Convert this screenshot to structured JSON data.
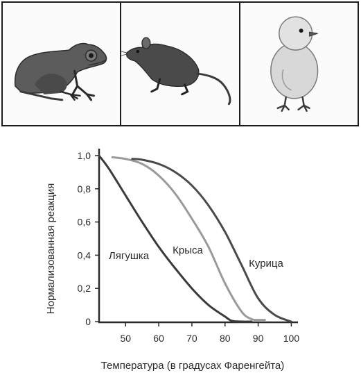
{
  "panels": [
    {
      "animal": "frog-illustration"
    },
    {
      "animal": "rat-illustration"
    },
    {
      "animal": "chick-illustration"
    }
  ],
  "chart_data": {
    "type": "line",
    "xlabel": "Температура (в градусах Фаренгейта)",
    "ylabel": "Нормализованная реакция",
    "xlim": [
      42,
      102
    ],
    "ylim": [
      0,
      1.0
    ],
    "xticks": [
      50,
      60,
      70,
      80,
      90,
      100
    ],
    "xtick_labels": [
      "50",
      "60",
      "70",
      "80",
      "90",
      "100"
    ],
    "yticks": [
      0,
      0.2,
      0.4,
      0.6,
      0.8,
      1.0
    ],
    "ytick_labels": [
      "0",
      "0,2",
      "0,4",
      "0,6",
      "0,8",
      "1,0"
    ],
    "grid": false,
    "series": [
      {
        "name": "Лягушка",
        "color": "#3a3a3a",
        "x": [
          42,
          45,
          50,
          55,
          60,
          65,
          70,
          75,
          80,
          82,
          85,
          88
        ],
        "y": [
          1.0,
          0.92,
          0.76,
          0.6,
          0.45,
          0.32,
          0.2,
          0.1,
          0.03,
          0.005,
          0.0,
          0.0
        ]
      },
      {
        "name": "Крыса",
        "color": "#9a9a9a",
        "x": [
          46,
          50,
          55,
          60,
          65,
          70,
          75,
          80,
          85,
          88,
          90,
          92
        ],
        "y": [
          0.99,
          0.98,
          0.95,
          0.88,
          0.77,
          0.62,
          0.45,
          0.23,
          0.06,
          0.015,
          0.01,
          0.01
        ]
      },
      {
        "name": "Курица",
        "color": "#4a4a4a",
        "x": [
          52,
          55,
          60,
          65,
          70,
          75,
          80,
          85,
          90,
          95,
          100
        ],
        "y": [
          0.98,
          0.975,
          0.95,
          0.9,
          0.82,
          0.7,
          0.54,
          0.34,
          0.14,
          0.04,
          0.0
        ]
      }
    ]
  }
}
